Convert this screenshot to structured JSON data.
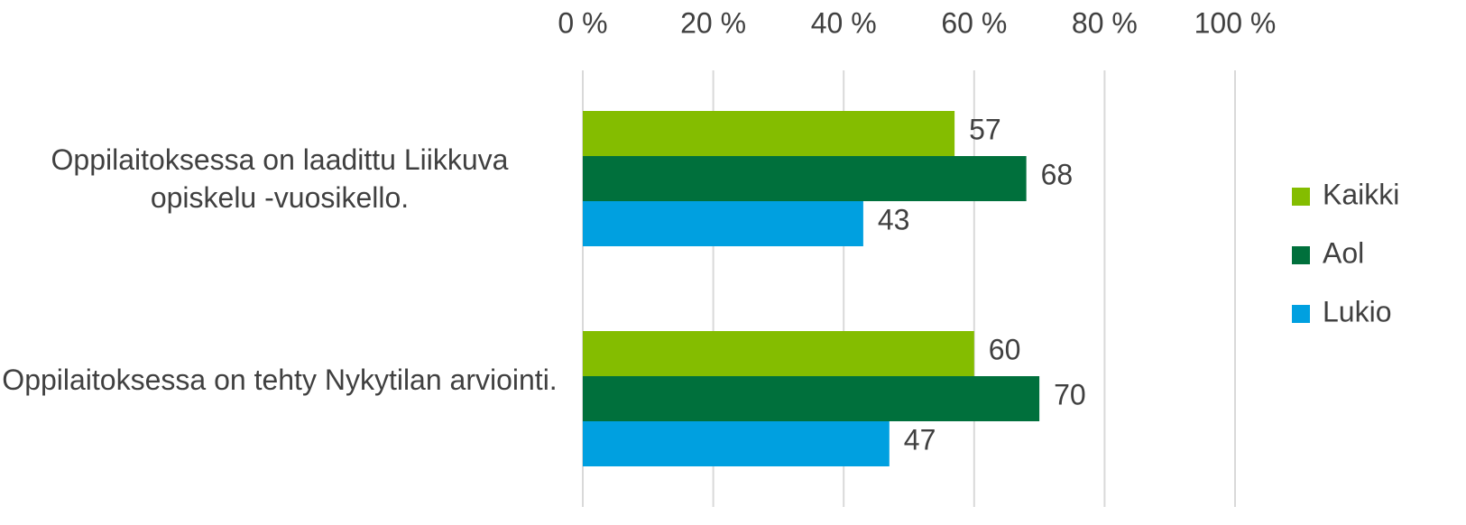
{
  "chart_data": {
    "type": "bar",
    "orientation": "horizontal",
    "categories": [
      "Oppilaitoksessa on laadittu Liikkuva opiskelu -vuosikello.",
      "Oppilaitoksessa on tehty Nykytilan arviointi."
    ],
    "series": [
      {
        "name": "Kaikki",
        "color": "#84bd00",
        "values": [
          57,
          60
        ]
      },
      {
        "name": "Aol",
        "color": "#00703c",
        "values": [
          68,
          70
        ]
      },
      {
        "name": "Lukio",
        "color": "#00a0e0",
        "values": [
          43,
          47
        ]
      }
    ],
    "xlim": [
      0,
      100
    ],
    "xticks": [
      {
        "value": 0,
        "label": "0 %"
      },
      {
        "value": 20,
        "label": "20 %"
      },
      {
        "value": 40,
        "label": "40 %"
      },
      {
        "value": 60,
        "label": "60 %"
      },
      {
        "value": 80,
        "label": "80 %"
      },
      {
        "value": 100,
        "label": "100 %"
      }
    ],
    "grid": true,
    "legend": "right"
  }
}
